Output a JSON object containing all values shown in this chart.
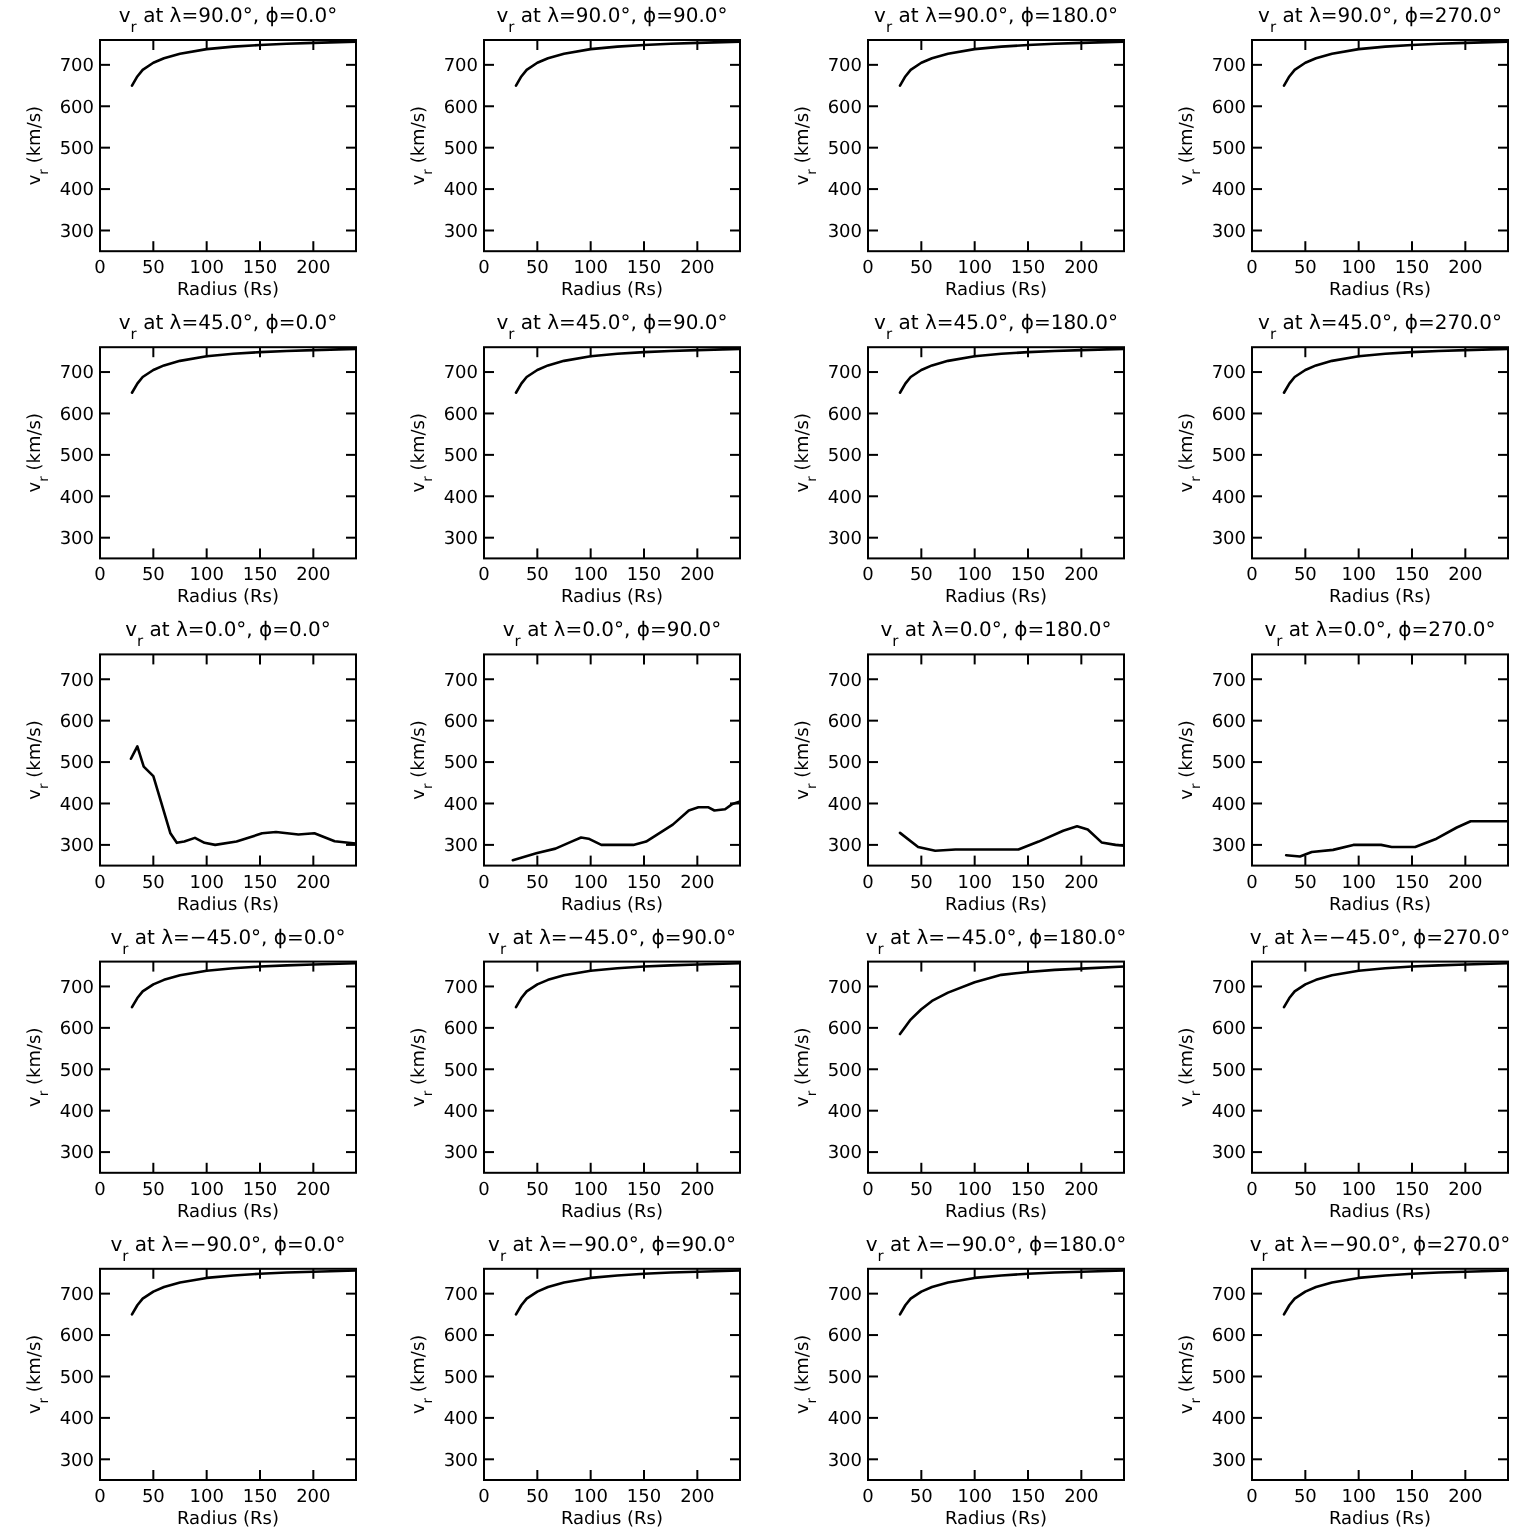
{
  "chart_data": [
    {
      "type": "line",
      "title": "v$_{r}$ at λ=90.0°, ϕ=0.0°",
      "xlabel": "Radius (Rs)",
      "ylabel": "v$_{r}$ (km/s)",
      "xlim": [
        0,
        240
      ],
      "ylim": [
        250,
        760
      ],
      "xticks": [
        0,
        50,
        100,
        150,
        200
      ],
      "yticks": [
        300,
        400,
        500,
        600,
        700
      ],
      "x": [
        30,
        35,
        40,
        50,
        60,
        75,
        100,
        125,
        150,
        175,
        200,
        240
      ],
      "series": [
        {
          "color": "#000000",
          "values": [
            650,
            672,
            688,
            705,
            716,
            727,
            738,
            744,
            748,
            751,
            753,
            756
          ]
        }
      ]
    },
    {
      "type": "line",
      "title": "v$_{r}$ at λ=90.0°, ϕ=90.0°",
      "xlabel": "Radius (Rs)",
      "ylabel": "v$_{r}$ (km/s)",
      "xlim": [
        0,
        240
      ],
      "ylim": [
        250,
        760
      ],
      "xticks": [
        0,
        50,
        100,
        150,
        200
      ],
      "yticks": [
        300,
        400,
        500,
        600,
        700
      ],
      "x": [
        30,
        35,
        40,
        50,
        60,
        75,
        100,
        125,
        150,
        175,
        200,
        240
      ],
      "series": [
        {
          "color": "#000000",
          "values": [
            650,
            672,
            688,
            705,
            716,
            727,
            738,
            744,
            748,
            751,
            753,
            756
          ]
        }
      ]
    },
    {
      "type": "line",
      "title": "v$_{r}$ at λ=90.0°, ϕ=180.0°",
      "xlabel": "Radius (Rs)",
      "ylabel": "v$_{r}$ (km/s)",
      "xlim": [
        0,
        240
      ],
      "ylim": [
        250,
        760
      ],
      "xticks": [
        0,
        50,
        100,
        150,
        200
      ],
      "yticks": [
        300,
        400,
        500,
        600,
        700
      ],
      "x": [
        30,
        35,
        40,
        50,
        60,
        75,
        100,
        125,
        150,
        175,
        200,
        240
      ],
      "series": [
        {
          "color": "#000000",
          "values": [
            650,
            672,
            688,
            705,
            716,
            727,
            738,
            744,
            748,
            751,
            753,
            756
          ]
        }
      ]
    },
    {
      "type": "line",
      "title": "v$_{r}$ at λ=90.0°, ϕ=270.0°",
      "xlabel": "Radius (Rs)",
      "ylabel": "v$_{r}$ (km/s)",
      "xlim": [
        0,
        240
      ],
      "ylim": [
        250,
        760
      ],
      "xticks": [
        0,
        50,
        100,
        150,
        200
      ],
      "yticks": [
        300,
        400,
        500,
        600,
        700
      ],
      "x": [
        30,
        35,
        40,
        50,
        60,
        75,
        100,
        125,
        150,
        175,
        200,
        240
      ],
      "series": [
        {
          "color": "#000000",
          "values": [
            650,
            672,
            688,
            705,
            716,
            727,
            738,
            744,
            748,
            751,
            753,
            756
          ]
        }
      ]
    },
    {
      "type": "line",
      "title": "v$_{r}$ at λ=45.0°, ϕ=0.0°",
      "xlabel": "Radius (Rs)",
      "ylabel": "v$_{r}$ (km/s)",
      "xlim": [
        0,
        240
      ],
      "ylim": [
        250,
        760
      ],
      "xticks": [
        0,
        50,
        100,
        150,
        200
      ],
      "yticks": [
        300,
        400,
        500,
        600,
        700
      ],
      "x": [
        30,
        35,
        40,
        50,
        60,
        75,
        100,
        125,
        150,
        175,
        200,
        240
      ],
      "series": [
        {
          "color": "#000000",
          "values": [
            650,
            672,
            688,
            705,
            716,
            727,
            738,
            744,
            748,
            751,
            753,
            756
          ]
        }
      ]
    },
    {
      "type": "line",
      "title": "v$_{r}$ at λ=45.0°, ϕ=90.0°",
      "xlabel": "Radius (Rs)",
      "ylabel": "v$_{r}$ (km/s)",
      "xlim": [
        0,
        240
      ],
      "ylim": [
        250,
        760
      ],
      "xticks": [
        0,
        50,
        100,
        150,
        200
      ],
      "yticks": [
        300,
        400,
        500,
        600,
        700
      ],
      "x": [
        30,
        35,
        40,
        50,
        60,
        75,
        100,
        125,
        150,
        175,
        200,
        240
      ],
      "series": [
        {
          "color": "#000000",
          "values": [
            650,
            672,
            688,
            705,
            716,
            727,
            738,
            744,
            748,
            751,
            753,
            756
          ]
        }
      ]
    },
    {
      "type": "line",
      "title": "v$_{r}$ at λ=45.0°, ϕ=180.0°",
      "xlabel": "Radius (Rs)",
      "ylabel": "v$_{r}$ (km/s)",
      "xlim": [
        0,
        240
      ],
      "ylim": [
        250,
        760
      ],
      "xticks": [
        0,
        50,
        100,
        150,
        200
      ],
      "yticks": [
        300,
        400,
        500,
        600,
        700
      ],
      "x": [
        30,
        35,
        40,
        50,
        60,
        75,
        100,
        125,
        150,
        175,
        200,
        240
      ],
      "series": [
        {
          "color": "#000000",
          "values": [
            650,
            672,
            688,
            705,
            716,
            727,
            738,
            744,
            748,
            751,
            753,
            756
          ]
        }
      ]
    },
    {
      "type": "line",
      "title": "v$_{r}$ at λ=45.0°, ϕ=270.0°",
      "xlabel": "Radius (Rs)",
      "ylabel": "v$_{r}$ (km/s)",
      "xlim": [
        0,
        240
      ],
      "ylim": [
        250,
        760
      ],
      "xticks": [
        0,
        50,
        100,
        150,
        200
      ],
      "yticks": [
        300,
        400,
        500,
        600,
        700
      ],
      "x": [
        30,
        35,
        40,
        50,
        60,
        75,
        100,
        125,
        150,
        175,
        200,
        240
      ],
      "series": [
        {
          "color": "#000000",
          "values": [
            650,
            672,
            688,
            705,
            716,
            727,
            738,
            744,
            748,
            751,
            753,
            756
          ]
        }
      ]
    },
    {
      "type": "line",
      "title": "v$_{r}$ at λ=0.0°, ϕ=0.0°",
      "xlabel": "Radius (Rs)",
      "ylabel": "v$_{r}$ (km/s)",
      "xlim": [
        0,
        240
      ],
      "ylim": [
        250,
        760
      ],
      "xticks": [
        0,
        50,
        100,
        150,
        200
      ],
      "yticks": [
        300,
        400,
        500,
        600,
        700
      ],
      "x": [
        29,
        35,
        41,
        50,
        58,
        66,
        72,
        79,
        89,
        98,
        108,
        128,
        152,
        165,
        186,
        201,
        220,
        233,
        240
      ],
      "series": [
        {
          "color": "#000000",
          "values": [
            508,
            538,
            489,
            466,
            397,
            328,
            305,
            308,
            317,
            305,
            300,
            308,
            328,
            331,
            325,
            328,
            309,
            305,
            303
          ]
        }
      ]
    },
    {
      "type": "line",
      "title": "v$_{r}$ at λ=0.0°, ϕ=90.0°",
      "xlabel": "Radius (Rs)",
      "ylabel": "v$_{r}$ (km/s)",
      "xlim": [
        0,
        240
      ],
      "ylim": [
        250,
        760
      ],
      "xticks": [
        0,
        50,
        100,
        150,
        200
      ],
      "yticks": [
        300,
        400,
        500,
        600,
        700
      ],
      "x": [
        27,
        49,
        67,
        82,
        91,
        98,
        110,
        140,
        152,
        177,
        192,
        201,
        210,
        216,
        226,
        233,
        240
      ],
      "series": [
        {
          "color": "#000000",
          "values": [
            263,
            280,
            291,
            308,
            318,
            315,
            300,
            300,
            308,
            349,
            383,
            391,
            391,
            383,
            386,
            399,
            405
          ]
        }
      ]
    },
    {
      "type": "line",
      "title": "v$_{r}$ at λ=0.0°, ϕ=180.0°",
      "xlabel": "Radius (Rs)",
      "ylabel": "v$_{r}$ (km/s)",
      "xlim": [
        0,
        240
      ],
      "ylim": [
        250,
        760
      ],
      "xticks": [
        0,
        50,
        100,
        150,
        200
      ],
      "yticks": [
        300,
        400,
        500,
        600,
        700
      ],
      "x": [
        30,
        47,
        63,
        82,
        141,
        160,
        183,
        196,
        206,
        219,
        232,
        240
      ],
      "series": [
        {
          "color": "#000000",
          "values": [
            329,
            295,
            286,
            289,
            289,
            308,
            334,
            345,
            337,
            306,
            300,
            298
          ]
        }
      ]
    },
    {
      "type": "line",
      "title": "v$_{r}$ at λ=0.0°, ϕ=270.0°",
      "xlabel": "Radius (Rs)",
      "ylabel": "v$_{r}$ (km/s)",
      "xlim": [
        0,
        240
      ],
      "ylim": [
        250,
        760
      ],
      "xticks": [
        0,
        50,
        100,
        150,
        200
      ],
      "yticks": [
        300,
        400,
        500,
        600,
        700
      ],
      "x": [
        32,
        45,
        56,
        76,
        95,
        121,
        131,
        153,
        173,
        192,
        205,
        240
      ],
      "series": [
        {
          "color": "#000000",
          "values": [
            275,
            272,
            283,
            288,
            300,
            300,
            295,
            295,
            315,
            342,
            357,
            357
          ]
        }
      ]
    },
    {
      "type": "line",
      "title": "v$_{r}$ at λ=−45.0°, ϕ=0.0°",
      "xlabel": "Radius (Rs)",
      "ylabel": "v$_{r}$ (km/s)",
      "xlim": [
        0,
        240
      ],
      "ylim": [
        250,
        760
      ],
      "xticks": [
        0,
        50,
        100,
        150,
        200
      ],
      "yticks": [
        300,
        400,
        500,
        600,
        700
      ],
      "x": [
        30,
        35,
        40,
        50,
        60,
        75,
        100,
        125,
        150,
        175,
        200,
        240
      ],
      "series": [
        {
          "color": "#000000",
          "values": [
            650,
            672,
            688,
            705,
            716,
            727,
            738,
            744,
            748,
            751,
            753,
            756
          ]
        }
      ]
    },
    {
      "type": "line",
      "title": "v$_{r}$ at λ=−45.0°, ϕ=90.0°",
      "xlabel": "Radius (Rs)",
      "ylabel": "v$_{r}$ (km/s)",
      "xlim": [
        0,
        240
      ],
      "ylim": [
        250,
        760
      ],
      "xticks": [
        0,
        50,
        100,
        150,
        200
      ],
      "yticks": [
        300,
        400,
        500,
        600,
        700
      ],
      "x": [
        30,
        35,
        40,
        50,
        60,
        75,
        100,
        125,
        150,
        175,
        200,
        240
      ],
      "series": [
        {
          "color": "#000000",
          "values": [
            650,
            672,
            688,
            705,
            716,
            727,
            738,
            744,
            748,
            751,
            753,
            756
          ]
        }
      ]
    },
    {
      "type": "line",
      "title": "v$_{r}$ at λ=−45.0°, ϕ=180.0°",
      "xlabel": "Radius (Rs)",
      "ylabel": "v$_{r}$ (km/s)",
      "xlim": [
        0,
        240
      ],
      "ylim": [
        250,
        760
      ],
      "xticks": [
        0,
        50,
        100,
        150,
        200
      ],
      "yticks": [
        300,
        400,
        500,
        600,
        700
      ],
      "x": [
        30,
        40,
        50,
        60,
        75,
        100,
        125,
        150,
        175,
        200,
        240
      ],
      "series": [
        {
          "color": "#000000",
          "values": [
            585,
            620,
            645,
            665,
            685,
            710,
            728,
            735,
            740,
            743,
            748
          ]
        }
      ]
    },
    {
      "type": "line",
      "title": "v$_{r}$ at λ=−45.0°, ϕ=270.0°",
      "xlabel": "Radius (Rs)",
      "ylabel": "v$_{r}$ (km/s)",
      "xlim": [
        0,
        240
      ],
      "ylim": [
        250,
        760
      ],
      "xticks": [
        0,
        50,
        100,
        150,
        200
      ],
      "yticks": [
        300,
        400,
        500,
        600,
        700
      ],
      "x": [
        30,
        35,
        40,
        50,
        60,
        75,
        100,
        125,
        150,
        175,
        200,
        240
      ],
      "series": [
        {
          "color": "#000000",
          "values": [
            650,
            672,
            688,
            705,
            716,
            727,
            738,
            744,
            748,
            751,
            753,
            756
          ]
        }
      ]
    },
    {
      "type": "line",
      "title": "v$_{r}$ at λ=−90.0°, ϕ=0.0°",
      "xlabel": "Radius (Rs)",
      "ylabel": "v$_{r}$ (km/s)",
      "xlim": [
        0,
        240
      ],
      "ylim": [
        250,
        760
      ],
      "xticks": [
        0,
        50,
        100,
        150,
        200
      ],
      "yticks": [
        300,
        400,
        500,
        600,
        700
      ],
      "x": [
        30,
        35,
        40,
        50,
        60,
        75,
        100,
        125,
        150,
        175,
        200,
        240
      ],
      "series": [
        {
          "color": "#000000",
          "values": [
            650,
            672,
            688,
            705,
            716,
            727,
            738,
            744,
            748,
            751,
            753,
            756
          ]
        }
      ]
    },
    {
      "type": "line",
      "title": "v$_{r}$ at λ=−90.0°, ϕ=90.0°",
      "xlabel": "Radius (Rs)",
      "ylabel": "v$_{r}$ (km/s)",
      "xlim": [
        0,
        240
      ],
      "ylim": [
        250,
        760
      ],
      "xticks": [
        0,
        50,
        100,
        150,
        200
      ],
      "yticks": [
        300,
        400,
        500,
        600,
        700
      ],
      "x": [
        30,
        35,
        40,
        50,
        60,
        75,
        100,
        125,
        150,
        175,
        200,
        240
      ],
      "series": [
        {
          "color": "#000000",
          "values": [
            650,
            672,
            688,
            705,
            716,
            727,
            738,
            744,
            748,
            751,
            753,
            756
          ]
        }
      ]
    },
    {
      "type": "line",
      "title": "v$_{r}$ at λ=−90.0°, ϕ=180.0°",
      "xlabel": "Radius (Rs)",
      "ylabel": "v$_{r}$ (km/s)",
      "xlim": [
        0,
        240
      ],
      "ylim": [
        250,
        760
      ],
      "xticks": [
        0,
        50,
        100,
        150,
        200
      ],
      "yticks": [
        300,
        400,
        500,
        600,
        700
      ],
      "x": [
        30,
        35,
        40,
        50,
        60,
        75,
        100,
        125,
        150,
        175,
        200,
        240
      ],
      "series": [
        {
          "color": "#000000",
          "values": [
            650,
            672,
            688,
            705,
            716,
            727,
            738,
            744,
            748,
            751,
            753,
            756
          ]
        }
      ]
    },
    {
      "type": "line",
      "title": "v$_{r}$ at λ=−90.0°, ϕ=270.0°",
      "xlabel": "Radius (Rs)",
      "ylabel": "v$_{r}$ (km/s)",
      "xlim": [
        0,
        240
      ],
      "ylim": [
        250,
        760
      ],
      "xticks": [
        0,
        50,
        100,
        150,
        200
      ],
      "yticks": [
        300,
        400,
        500,
        600,
        700
      ],
      "x": [
        30,
        35,
        40,
        50,
        60,
        75,
        100,
        125,
        150,
        175,
        200,
        240
      ],
      "series": [
        {
          "color": "#000000",
          "values": [
            650,
            672,
            688,
            705,
            716,
            727,
            738,
            744,
            748,
            751,
            753,
            756
          ]
        }
      ]
    }
  ]
}
